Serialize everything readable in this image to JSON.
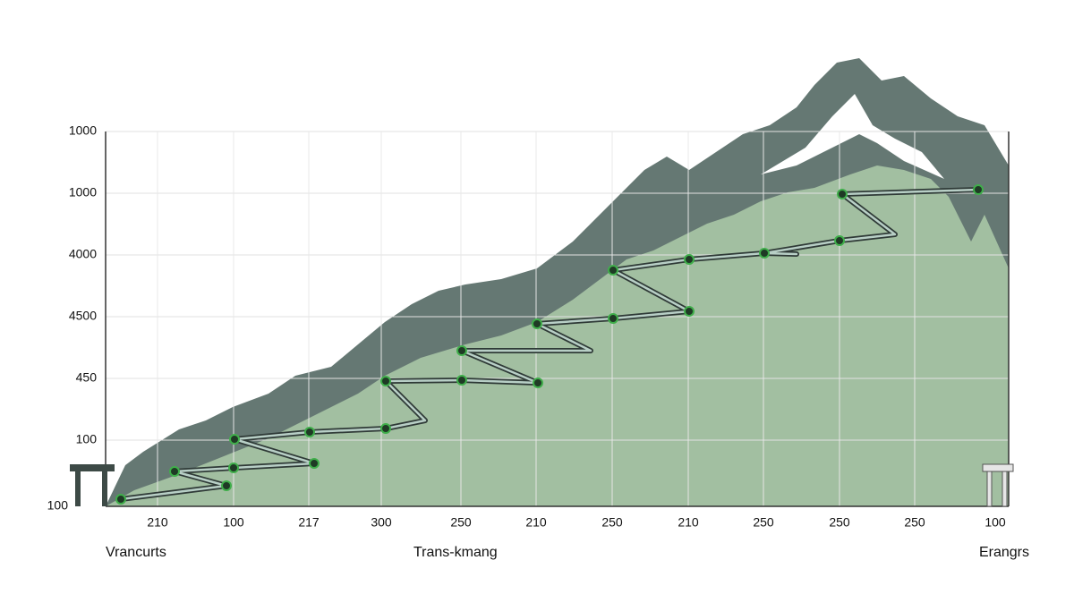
{
  "y_axis_labels": [
    "1000",
    "1000",
    "4000",
    "4500",
    "450",
    "100",
    "100"
  ],
  "x_axis_labels": [
    "210",
    "100",
    "217",
    "300",
    "250",
    "210",
    "250",
    "210",
    "250",
    "250",
    "250",
    "100"
  ],
  "captions": [
    "Vrancurts",
    "Trans-kmang",
    "Erangrs"
  ]
}
